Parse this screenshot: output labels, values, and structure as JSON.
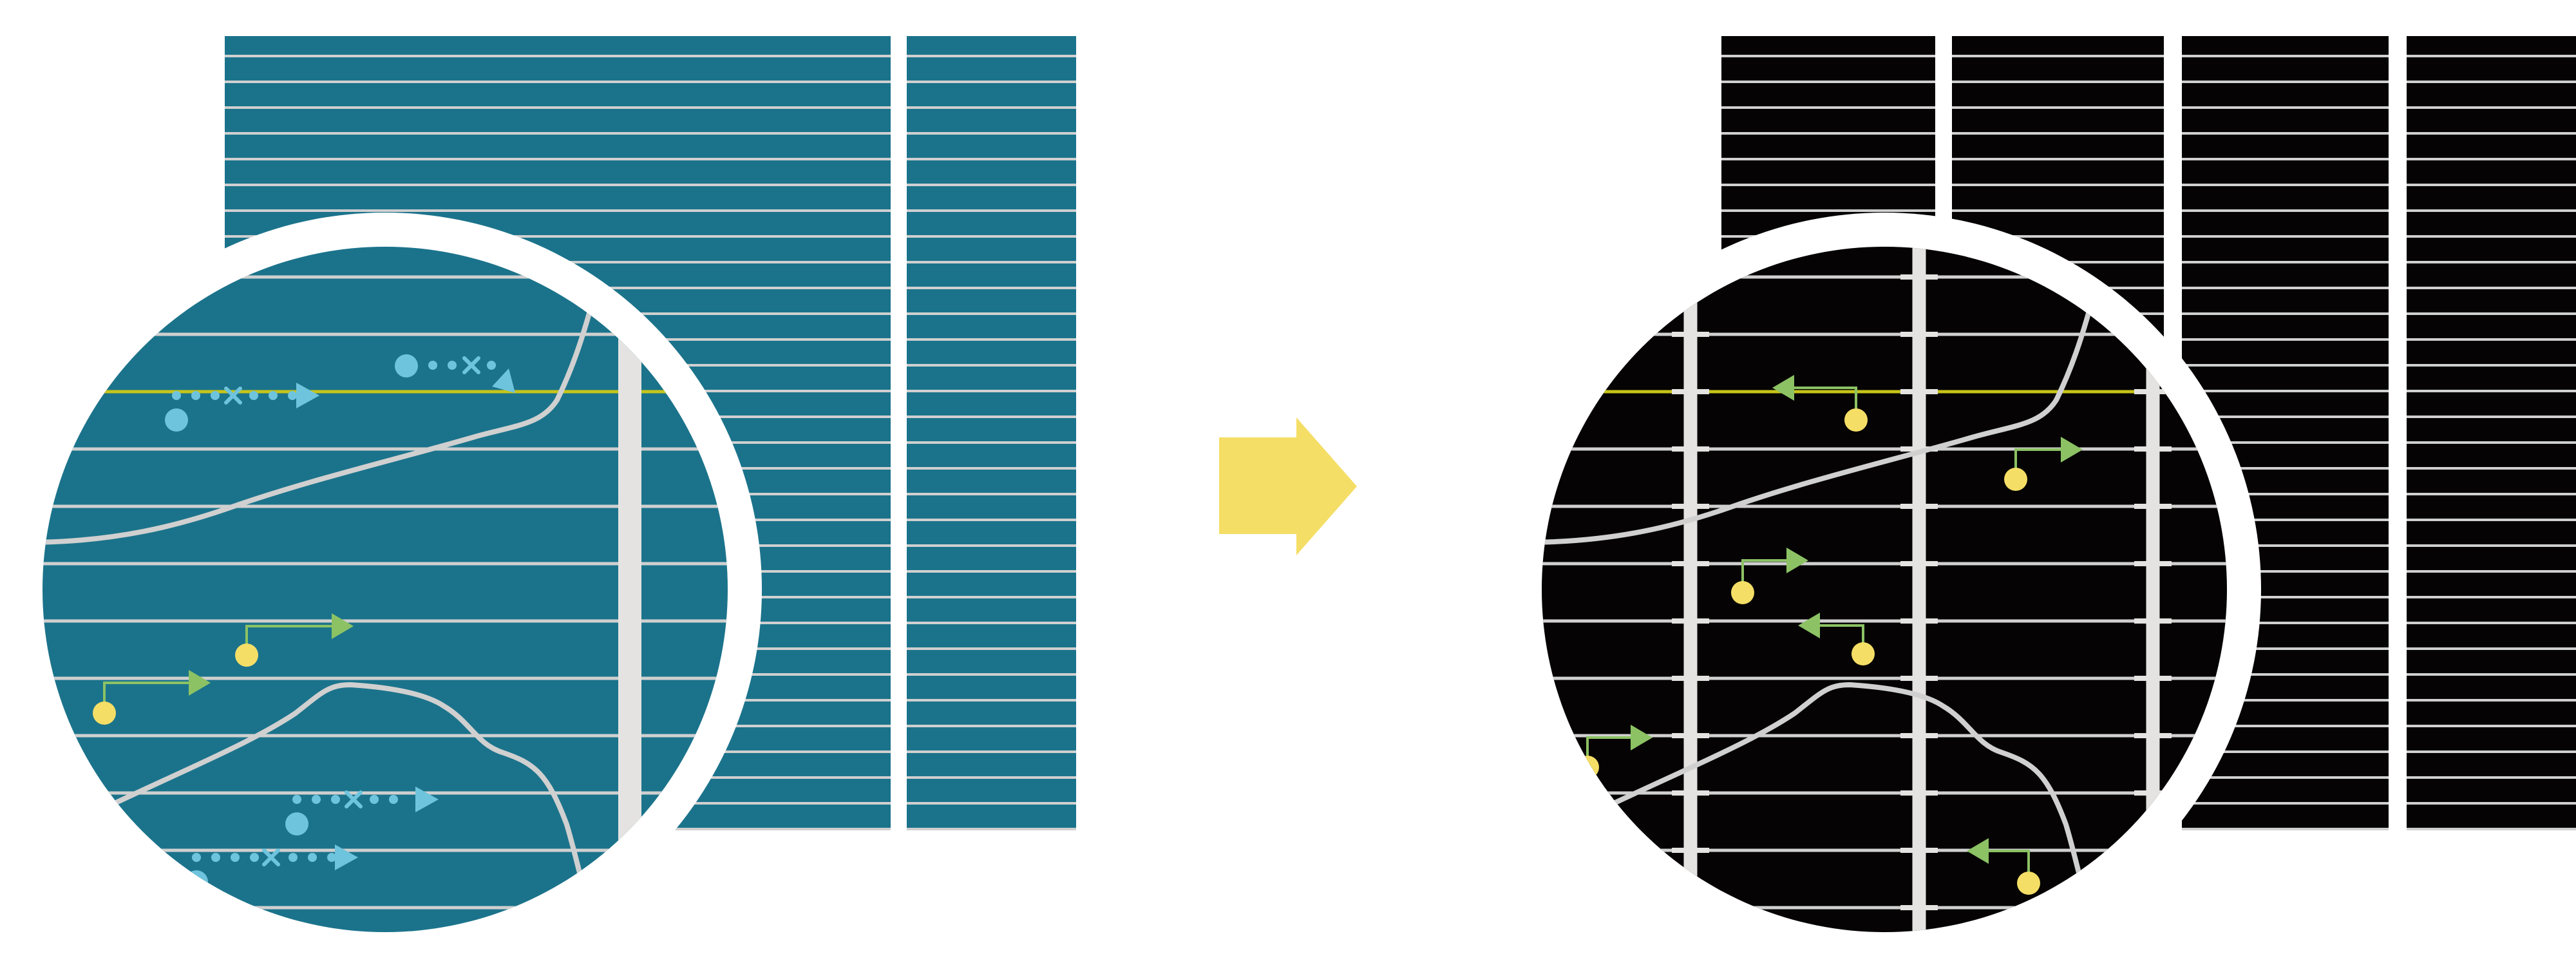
{
  "colors": {
    "background": "#ffffff",
    "teal_panel": "#1b738b",
    "black_panel": "#050303",
    "grid_line": "#d0d0d0",
    "vertical_bar": "#e4e3e1",
    "highlight_line": "#c7c419",
    "blue_marker": "#6ec4dc",
    "green_arrow": "#8cc264",
    "yellow_dot": "#f5de66",
    "transition_arrow": "#f5de66"
  },
  "panels": {
    "left": {
      "name": "teal-grid-panel",
      "columns": 2
    },
    "right": {
      "name": "black-grid-panel",
      "columns": 4
    }
  }
}
